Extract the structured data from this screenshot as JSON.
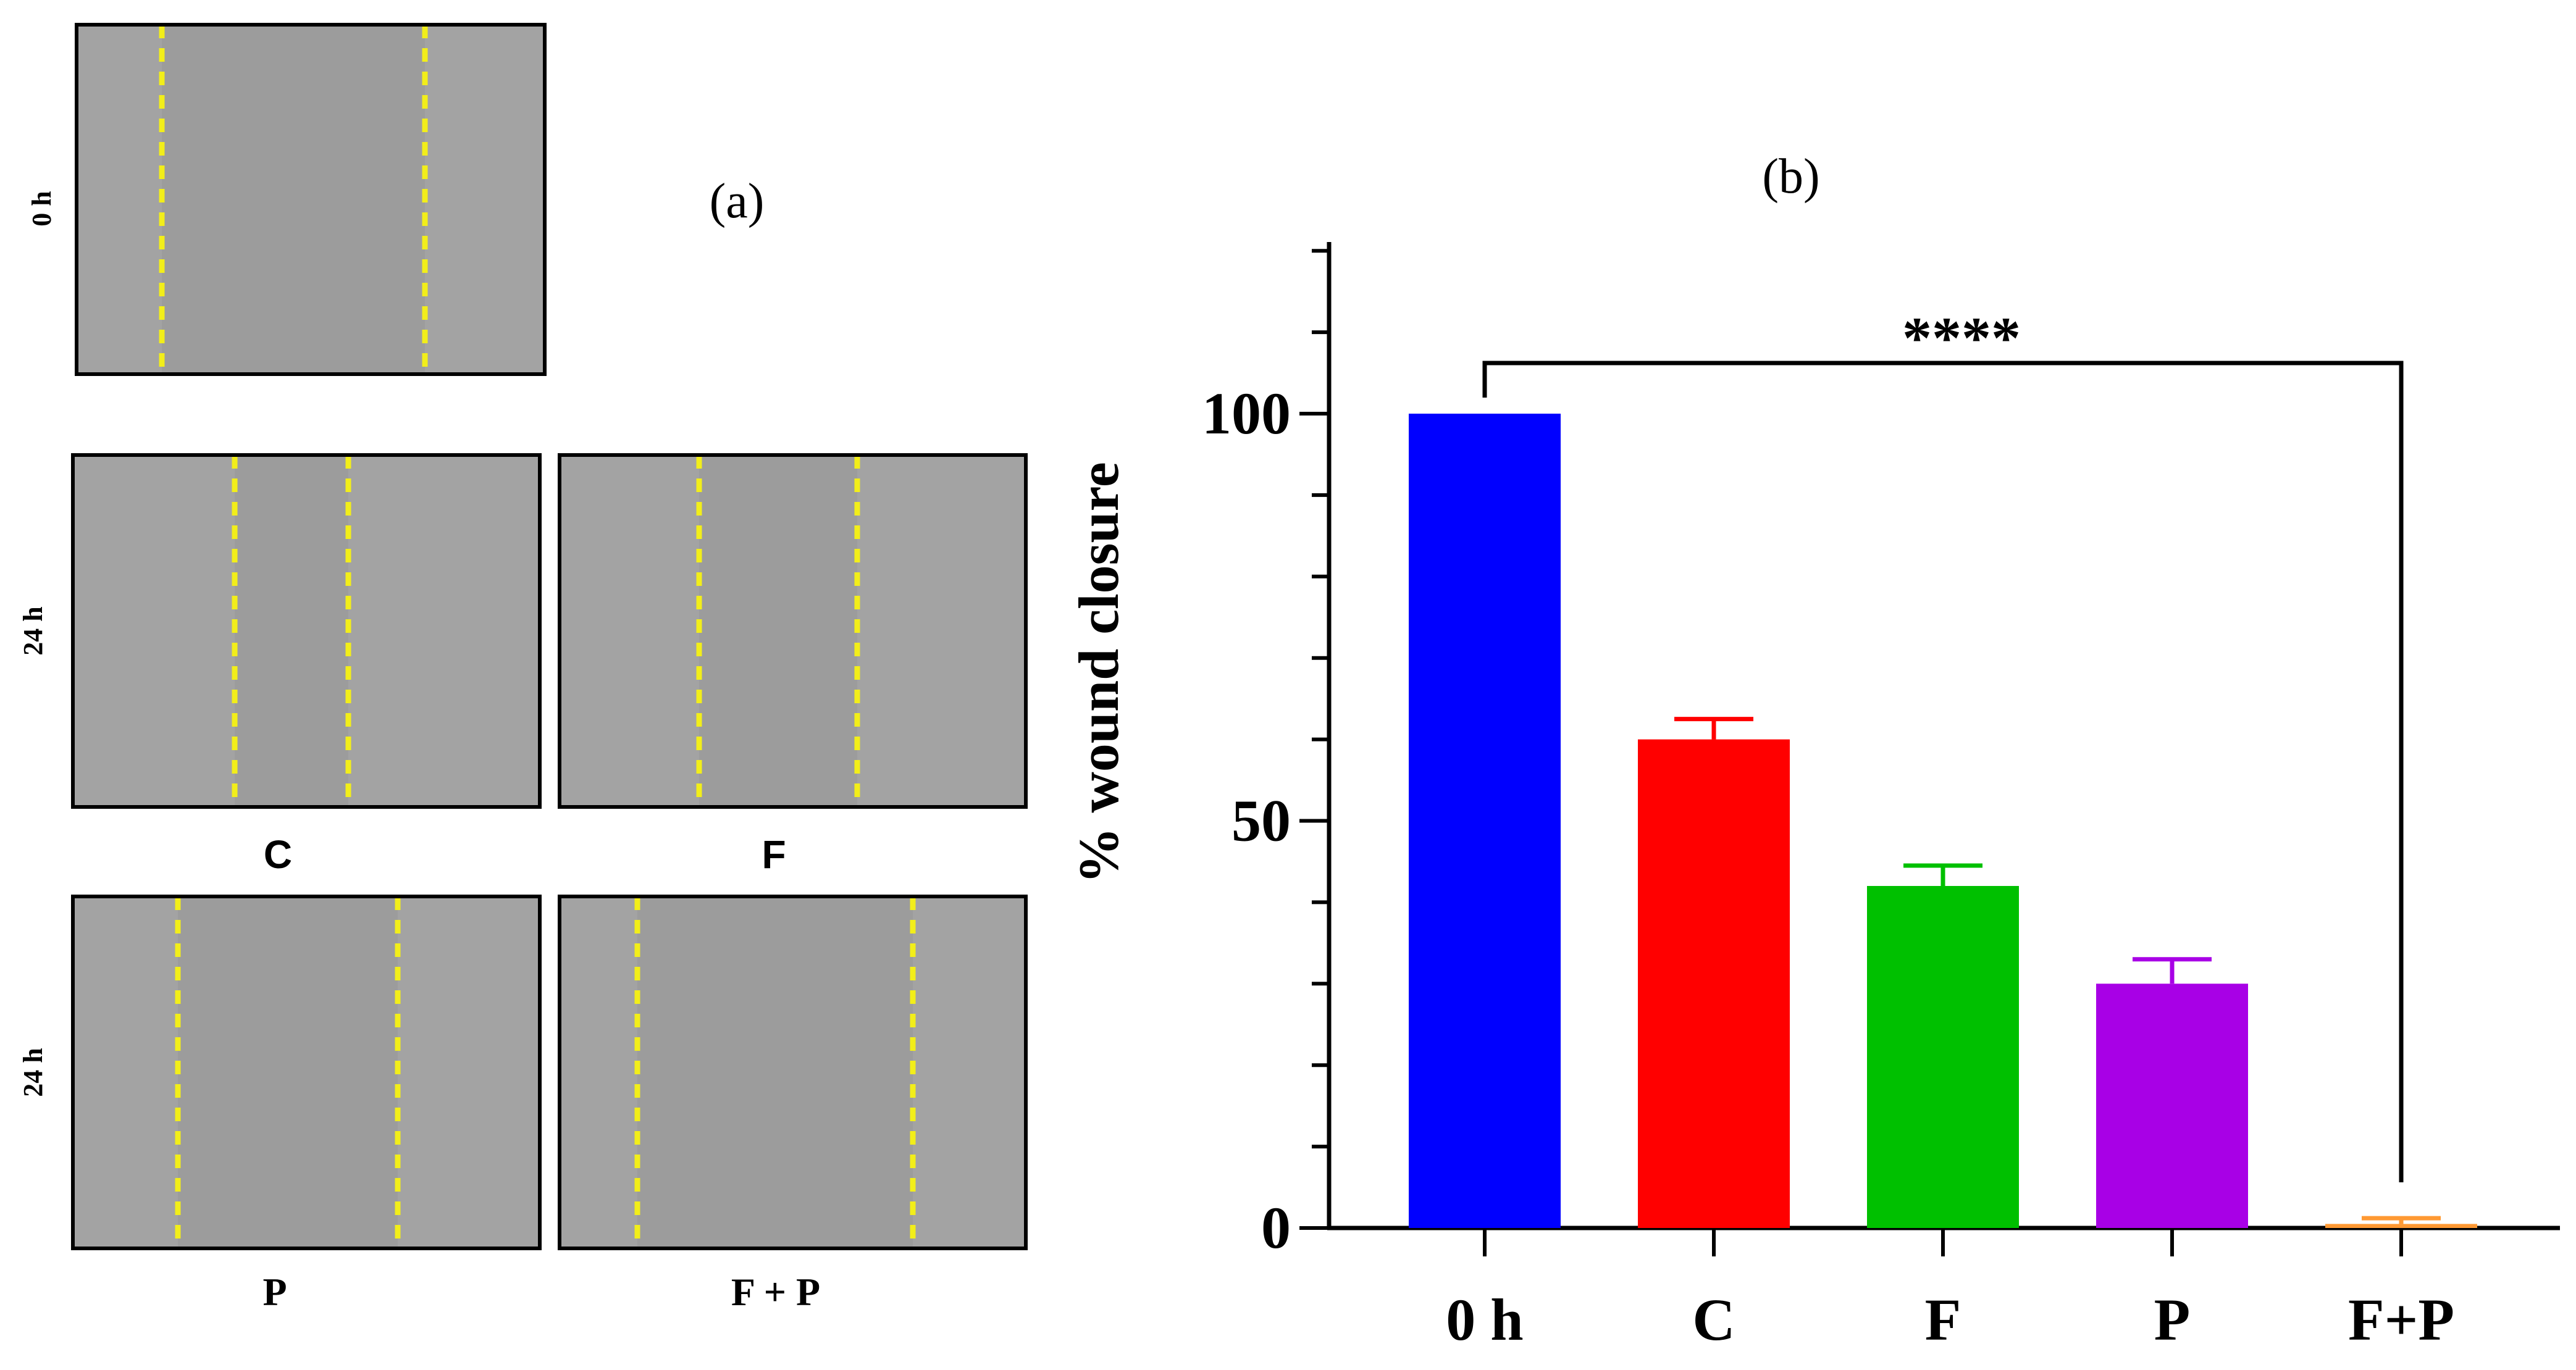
{
  "panel_a": {
    "label": "(a)",
    "row_labels": [
      "0 h",
      "24 h",
      "24 h"
    ],
    "condition_labels": [
      "C",
      "F",
      "P",
      "F + P"
    ]
  },
  "chart_data": {
    "type": "bar",
    "title": "(b)",
    "xlabel": "",
    "ylabel": "% wound closure",
    "ylim": [
      0,
      122
    ],
    "yticks": [
      0,
      50,
      100
    ],
    "ytick_labels": [
      "0",
      "50",
      "100"
    ],
    "minor_tick_step": 10,
    "categories": [
      "0 h",
      "C",
      "F",
      "P",
      "F+P"
    ],
    "values": [
      100,
      60,
      42,
      30,
      0.5
    ],
    "errors": [
      0,
      2.5,
      2.5,
      3,
      0.7
    ],
    "colors": [
      "#0000ff",
      "#ff0000",
      "#00c000",
      "#a800e6",
      "#ff9933"
    ],
    "significance": {
      "from": "0 h",
      "to": "F+P",
      "label": "****"
    }
  }
}
